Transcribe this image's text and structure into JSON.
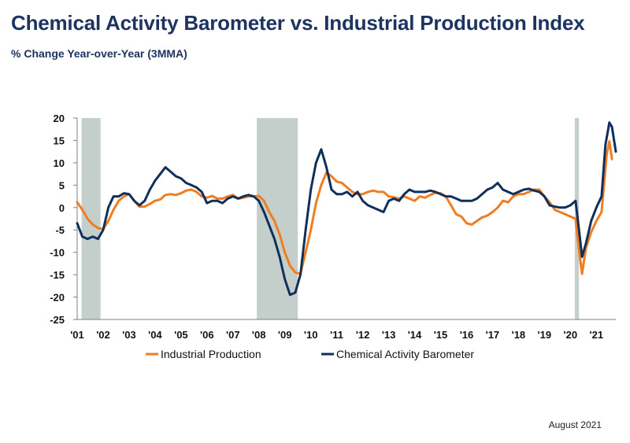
{
  "title": "Chemical Activity Barometer vs. Industrial Production Index",
  "subtitle": "% Change Year-over-Year (3MMA)",
  "footer": "August 2021",
  "chart_data": {
    "type": "line",
    "title": "Chemical Activity Barometer vs. Industrial Production Index",
    "subtitle": "% Change Year-over-Year (3MMA)",
    "xlabel": "",
    "ylabel": "",
    "xlim": [
      2001.0,
      2021.75
    ],
    "ylim": [
      -25,
      20
    ],
    "y_ticks": [
      20,
      15,
      10,
      5,
      0,
      -5,
      -10,
      -15,
      -20,
      -25
    ],
    "x_tick_labels": [
      "'01",
      "'02",
      "'03",
      "'04",
      "'05",
      "'06",
      "'07",
      "'08",
      "'09",
      "'10",
      "'11",
      "'12",
      "'13",
      "'14",
      "'15",
      "'16",
      "'17",
      "'18",
      "'19",
      "'20",
      "'21"
    ],
    "x_tick_values": [
      2001,
      2002,
      2003,
      2004,
      2005,
      2006,
      2007,
      2008,
      2009,
      2010,
      2011,
      2012,
      2013,
      2014,
      2015,
      2016,
      2017,
      2018,
      2019,
      2020,
      2021
    ],
    "grid": false,
    "legend_position": "bottom",
    "recessions": [
      [
        2001.17,
        2001.9
      ],
      [
        2007.92,
        2009.5
      ],
      [
        2020.17,
        2020.33
      ]
    ],
    "recession_color": "#c4cfcb",
    "series": [
      {
        "name": "Industrial Production",
        "color": "#f07d20",
        "points": [
          [
            2001.0,
            1.2
          ],
          [
            2001.2,
            -0.5
          ],
          [
            2001.4,
            -2.5
          ],
          [
            2001.6,
            -3.8
          ],
          [
            2001.8,
            -4.6
          ],
          [
            2002.0,
            -4.8
          ],
          [
            2002.2,
            -3.0
          ],
          [
            2002.4,
            -0.5
          ],
          [
            2002.6,
            1.5
          ],
          [
            2002.8,
            2.5
          ],
          [
            2003.0,
            3.0
          ],
          [
            2003.2,
            1.5
          ],
          [
            2003.4,
            0.2
          ],
          [
            2003.6,
            0.2
          ],
          [
            2003.8,
            0.8
          ],
          [
            2004.0,
            1.5
          ],
          [
            2004.2,
            1.8
          ],
          [
            2004.4,
            2.8
          ],
          [
            2004.6,
            3.0
          ],
          [
            2004.8,
            2.8
          ],
          [
            2005.0,
            3.2
          ],
          [
            2005.2,
            3.8
          ],
          [
            2005.4,
            4.0
          ],
          [
            2005.6,
            3.5
          ],
          [
            2005.8,
            2.5
          ],
          [
            2006.0,
            2.2
          ],
          [
            2006.2,
            2.6
          ],
          [
            2006.4,
            2.0
          ],
          [
            2006.6,
            2.0
          ],
          [
            2006.8,
            2.5
          ],
          [
            2007.0,
            2.8
          ],
          [
            2007.2,
            2.0
          ],
          [
            2007.4,
            2.2
          ],
          [
            2007.6,
            2.5
          ],
          [
            2007.8,
            2.5
          ],
          [
            2008.0,
            2.6
          ],
          [
            2008.2,
            1.5
          ],
          [
            2008.4,
            -1.0
          ],
          [
            2008.6,
            -3.0
          ],
          [
            2008.8,
            -6.0
          ],
          [
            2009.0,
            -10.0
          ],
          [
            2009.2,
            -13.0
          ],
          [
            2009.4,
            -14.5
          ],
          [
            2009.6,
            -14.8
          ],
          [
            2009.8,
            -10.0
          ],
          [
            2010.0,
            -5.0
          ],
          [
            2010.2,
            1.0
          ],
          [
            2010.4,
            5.0
          ],
          [
            2010.6,
            7.8
          ],
          [
            2010.8,
            7.0
          ],
          [
            2011.0,
            5.8
          ],
          [
            2011.2,
            5.5
          ],
          [
            2011.4,
            4.5
          ],
          [
            2011.6,
            3.5
          ],
          [
            2011.8,
            3.0
          ],
          [
            2012.0,
            3.0
          ],
          [
            2012.2,
            3.5
          ],
          [
            2012.4,
            3.8
          ],
          [
            2012.6,
            3.5
          ],
          [
            2012.8,
            3.5
          ],
          [
            2013.0,
            2.5
          ],
          [
            2013.2,
            2.3
          ],
          [
            2013.4,
            2.0
          ],
          [
            2013.6,
            2.5
          ],
          [
            2013.8,
            2.0
          ],
          [
            2014.0,
            1.5
          ],
          [
            2014.2,
            2.5
          ],
          [
            2014.4,
            2.2
          ],
          [
            2014.6,
            2.8
          ],
          [
            2014.8,
            3.3
          ],
          [
            2015.0,
            3.2
          ],
          [
            2015.2,
            2.5
          ],
          [
            2015.4,
            0.5
          ],
          [
            2015.6,
            -1.5
          ],
          [
            2015.8,
            -2.0
          ],
          [
            2016.0,
            -3.5
          ],
          [
            2016.2,
            -3.8
          ],
          [
            2016.4,
            -3.0
          ],
          [
            2016.6,
            -2.2
          ],
          [
            2016.8,
            -1.8
          ],
          [
            2017.0,
            -1.0
          ],
          [
            2017.2,
            0.0
          ],
          [
            2017.4,
            1.5
          ],
          [
            2017.6,
            1.2
          ],
          [
            2017.8,
            2.5
          ],
          [
            2018.0,
            3.0
          ],
          [
            2018.2,
            3.0
          ],
          [
            2018.4,
            3.5
          ],
          [
            2018.6,
            4.0
          ],
          [
            2018.8,
            4.0
          ],
          [
            2019.0,
            2.5
          ],
          [
            2019.2,
            1.2
          ],
          [
            2019.4,
            -0.5
          ],
          [
            2019.6,
            -1.0
          ],
          [
            2019.8,
            -1.5
          ],
          [
            2020.0,
            -2.0
          ],
          [
            2020.2,
            -2.5
          ],
          [
            2020.3,
            -8.0
          ],
          [
            2020.45,
            -14.8
          ],
          [
            2020.6,
            -9.0
          ],
          [
            2020.8,
            -5.5
          ],
          [
            2021.0,
            -3.0
          ],
          [
            2021.2,
            -1.0
          ],
          [
            2021.4,
            12.0
          ],
          [
            2021.5,
            14.8
          ],
          [
            2021.6,
            10.8
          ]
        ]
      },
      {
        "name": "Chemical Activity Barometer",
        "color": "#102f5a",
        "points": [
          [
            2001.0,
            -3.5
          ],
          [
            2001.2,
            -6.5
          ],
          [
            2001.4,
            -7.0
          ],
          [
            2001.6,
            -6.5
          ],
          [
            2001.8,
            -7.0
          ],
          [
            2002.0,
            -5.0
          ],
          [
            2002.2,
            0.0
          ],
          [
            2002.4,
            2.5
          ],
          [
            2002.6,
            2.5
          ],
          [
            2002.8,
            3.2
          ],
          [
            2003.0,
            3.0
          ],
          [
            2003.2,
            1.5
          ],
          [
            2003.4,
            0.5
          ],
          [
            2003.6,
            1.5
          ],
          [
            2003.8,
            4.0
          ],
          [
            2004.0,
            6.0
          ],
          [
            2004.2,
            7.5
          ],
          [
            2004.4,
            9.0
          ],
          [
            2004.6,
            8.0
          ],
          [
            2004.8,
            7.0
          ],
          [
            2005.0,
            6.5
          ],
          [
            2005.2,
            5.5
          ],
          [
            2005.4,
            5.0
          ],
          [
            2005.6,
            4.5
          ],
          [
            2005.8,
            3.5
          ],
          [
            2006.0,
            1.0
          ],
          [
            2006.2,
            1.5
          ],
          [
            2006.4,
            1.5
          ],
          [
            2006.6,
            1.0
          ],
          [
            2006.8,
            2.0
          ],
          [
            2007.0,
            2.5
          ],
          [
            2007.2,
            2.0
          ],
          [
            2007.4,
            2.5
          ],
          [
            2007.6,
            2.8
          ],
          [
            2007.8,
            2.5
          ],
          [
            2008.0,
            1.5
          ],
          [
            2008.2,
            -1.0
          ],
          [
            2008.4,
            -4.0
          ],
          [
            2008.6,
            -7.0
          ],
          [
            2008.8,
            -11.0
          ],
          [
            2009.0,
            -16.0
          ],
          [
            2009.2,
            -19.5
          ],
          [
            2009.4,
            -19.0
          ],
          [
            2009.6,
            -15.0
          ],
          [
            2009.8,
            -5.0
          ],
          [
            2010.0,
            4.0
          ],
          [
            2010.2,
            10.0
          ],
          [
            2010.4,
            13.0
          ],
          [
            2010.6,
            9.0
          ],
          [
            2010.8,
            4.0
          ],
          [
            2011.0,
            3.0
          ],
          [
            2011.2,
            3.0
          ],
          [
            2011.4,
            3.5
          ],
          [
            2011.6,
            2.5
          ],
          [
            2011.8,
            3.5
          ],
          [
            2012.0,
            1.5
          ],
          [
            2012.2,
            0.5
          ],
          [
            2012.4,
            0.0
          ],
          [
            2012.6,
            -0.5
          ],
          [
            2012.8,
            -1.0
          ],
          [
            2013.0,
            1.5
          ],
          [
            2013.2,
            2.0
          ],
          [
            2013.4,
            1.5
          ],
          [
            2013.6,
            3.0
          ],
          [
            2013.8,
            4.0
          ],
          [
            2014.0,
            3.5
          ],
          [
            2014.2,
            3.5
          ],
          [
            2014.4,
            3.5
          ],
          [
            2014.6,
            3.8
          ],
          [
            2014.8,
            3.5
          ],
          [
            2015.0,
            3.0
          ],
          [
            2015.2,
            2.5
          ],
          [
            2015.4,
            2.5
          ],
          [
            2015.6,
            2.0
          ],
          [
            2015.8,
            1.5
          ],
          [
            2016.0,
            1.5
          ],
          [
            2016.2,
            1.5
          ],
          [
            2016.4,
            2.0
          ],
          [
            2016.6,
            3.0
          ],
          [
            2016.8,
            4.0
          ],
          [
            2017.0,
            4.5
          ],
          [
            2017.2,
            5.5
          ],
          [
            2017.4,
            4.0
          ],
          [
            2017.6,
            3.5
          ],
          [
            2017.8,
            3.0
          ],
          [
            2018.0,
            3.5
          ],
          [
            2018.2,
            4.0
          ],
          [
            2018.4,
            4.2
          ],
          [
            2018.6,
            3.8
          ],
          [
            2018.8,
            3.5
          ],
          [
            2019.0,
            2.5
          ],
          [
            2019.2,
            0.5
          ],
          [
            2019.4,
            0.2
          ],
          [
            2019.6,
            0.0
          ],
          [
            2019.8,
            0.0
          ],
          [
            2020.0,
            0.5
          ],
          [
            2020.2,
            1.5
          ],
          [
            2020.35,
            -6.0
          ],
          [
            2020.45,
            -11.0
          ],
          [
            2020.6,
            -8.0
          ],
          [
            2020.8,
            -3.0
          ],
          [
            2021.0,
            0.0
          ],
          [
            2021.2,
            2.5
          ],
          [
            2021.35,
            14.0
          ],
          [
            2021.5,
            19.0
          ],
          [
            2021.6,
            18.0
          ],
          [
            2021.75,
            12.5
          ]
        ]
      }
    ]
  }
}
